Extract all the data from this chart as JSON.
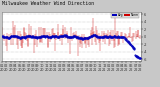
{
  "n_points": 240,
  "ylim": [
    -6.5,
    6.5
  ],
  "bar_color": "#cc0000",
  "avg_color": "#0000bb",
  "bg_color": "#c8c8c8",
  "plot_bg": "#ffffff",
  "grid_color": "#999999",
  "legend_colors": [
    "#0000bb",
    "#cc0000"
  ],
  "legend_labels": [
    "Avg",
    "Norm"
  ],
  "title_fontsize": 3.5,
  "tick_fontsize": 2.5,
  "ylabel_right": [
    "6",
    "4",
    "2",
    "0",
    "-2",
    "-4",
    "-6"
  ],
  "ytick_vals": [
    6,
    4,
    2,
    0,
    -2,
    -4,
    -6
  ],
  "seed": 7
}
